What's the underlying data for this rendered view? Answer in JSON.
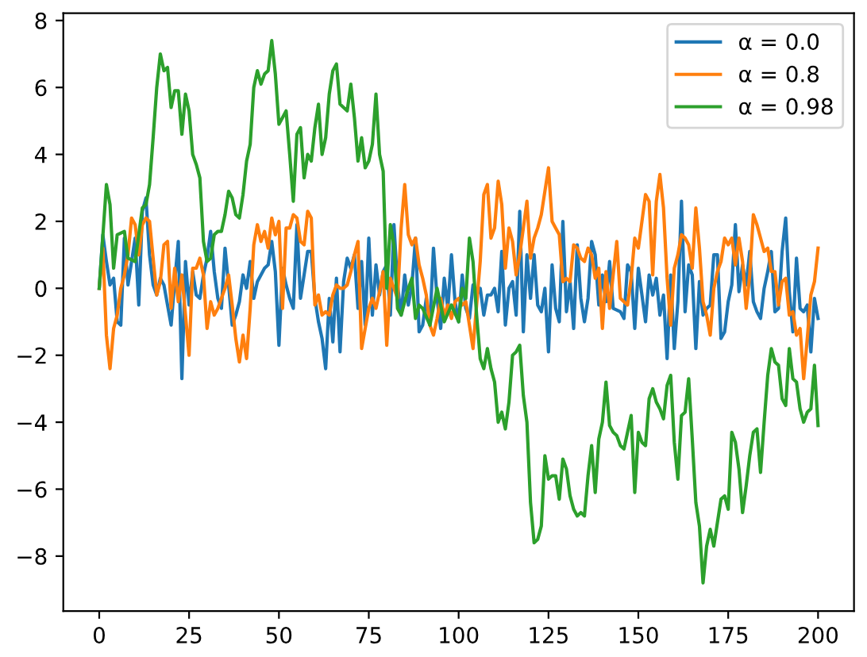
{
  "chart_data": {
    "type": "line",
    "xlim": [
      -10,
      210
    ],
    "xticks": [
      0,
      25,
      50,
      75,
      100,
      125,
      150,
      175,
      200
    ],
    "ylim": [
      -9.64,
      8.22
    ],
    "yticks": [
      {
        "value": -8,
        "label": "−8"
      },
      {
        "value": -6,
        "label": "−6"
      },
      {
        "value": -4,
        "label": "−4"
      },
      {
        "value": -2,
        "label": "−2"
      },
      0,
      2,
      4,
      6,
      8
    ],
    "legend": "top right",
    "series": [
      {
        "name": "α = 0.0",
        "color": "#1f77b4",
        "x": [
          0,
          1,
          2,
          3,
          4,
          5,
          6,
          7,
          8,
          9,
          10,
          11,
          12,
          13,
          14,
          15,
          16,
          17,
          18,
          19,
          20,
          21,
          22,
          23,
          24,
          25,
          26,
          27,
          28,
          29,
          30,
          31,
          32,
          33,
          34,
          35,
          36,
          37,
          38,
          39,
          40,
          41,
          42,
          43,
          44,
          45,
          46,
          47,
          48,
          49,
          50,
          51,
          52,
          53,
          54,
          55,
          56,
          57,
          58,
          59,
          60,
          61,
          62,
          63,
          64,
          65,
          66,
          67,
          68,
          69,
          70,
          71,
          72,
          73,
          74,
          75,
          76,
          77,
          78,
          79,
          80,
          81,
          82,
          83,
          84,
          85,
          86,
          87,
          88,
          89,
          90,
          91,
          92,
          93,
          94,
          95,
          96,
          97,
          98,
          99,
          100,
          101,
          102,
          103,
          104,
          105,
          106,
          107,
          108,
          109,
          110,
          111,
          112,
          113,
          114,
          115,
          116,
          117,
          118,
          119,
          120,
          121,
          122,
          123,
          124,
          125,
          126,
          127,
          128,
          129,
          130,
          131,
          132,
          133,
          134,
          135,
          136,
          137,
          138,
          139,
          140,
          141,
          142,
          143,
          145,
          146,
          147,
          148,
          149,
          150,
          151,
          152,
          153,
          154,
          155,
          156,
          157,
          158,
          159,
          160,
          161,
          162,
          163,
          164,
          165,
          166,
          167,
          168,
          169,
          170,
          171,
          172,
          173,
          174,
          175,
          176,
          177,
          178,
          179,
          180,
          181,
          182,
          183,
          184,
          185,
          186,
          187,
          188,
          189,
          190,
          191,
          192,
          193,
          194,
          195,
          196,
          197,
          198,
          199,
          200
        ],
        "values": [
          0,
          1.6,
          0.8,
          0.1,
          0.3,
          -1.0,
          -1.1,
          1.5,
          0.1,
          0.8,
          1.5,
          -0.5,
          2.3,
          2.7,
          1.0,
          0.1,
          -0.2,
          0.3,
          0.1,
          -0.5,
          -1.1,
          0.2,
          1.4,
          -2.7,
          0.8,
          -0.5,
          0.5,
          -0.2,
          -0.3,
          0.4,
          0.9,
          1.7,
          0.5,
          -0.3,
          -0.6,
          1.2,
          0.1,
          -1.1,
          -0.8,
          -0.4,
          0.4,
          0.0,
          0.8,
          -0.3,
          0.2,
          0.4,
          0.6,
          0.7,
          1.4,
          0.5,
          -1.7,
          0.6,
          0.1,
          -0.3,
          -0.6,
          1.9,
          -0.3,
          0.4,
          1.1,
          1.1,
          -0.3,
          -1.0,
          -1.5,
          -2.4,
          -0.3,
          -1.6,
          0.3,
          -1.9,
          0.2,
          0.9,
          0.6,
          1.0,
          -0.6,
          0.8,
          -1.1,
          1.5,
          -0.8,
          0.7,
          -0.2,
          0.5,
          0.7,
          -0.8,
          1.9,
          0.1,
          -0.8,
          0.4,
          -0.5,
          0.1,
          1.5,
          -1.3,
          -1.1,
          -0.3,
          -1.1,
          1.2,
          -0.3,
          -1.2,
          0.3,
          -0.6,
          1.0,
          -0.4,
          -1.0,
          0.4,
          -0.6,
          -0.9,
          0.1,
          -0.2,
          0.0,
          -0.8,
          -0.2,
          -0.2,
          0.0,
          -0.7,
          1.1,
          -1.1,
          0.0,
          0.2,
          -0.8,
          2.3,
          -1.3,
          1.0,
          -0.3,
          1.0,
          -0.5,
          -0.7,
          0.0,
          -1.9,
          0.7,
          -0.6,
          -1.0,
          2.0,
          -0.7,
          0.2,
          -1.2,
          1.3,
          -0.3,
          -1.0,
          -0.3,
          1.4,
          1.0,
          -0.5,
          0.4,
          -0.4,
          0.8,
          -0.6,
          -0.7,
          -0.9,
          0.7,
          0.5,
          -1.2,
          0.6,
          -0.2,
          -1.0,
          0.4,
          -0.2,
          0.3,
          -0.8,
          -0.2,
          -2.1,
          0.4,
          -1.8,
          -0.4,
          2.6,
          -0.7,
          0.7,
          0.4,
          -1.8,
          0.2,
          -0.8,
          -0.6,
          -0.5,
          1.0,
          1.0,
          -1.5,
          -1.3,
          -0.4,
          0.1,
          1.9,
          -0.1,
          0.7,
          0.1,
          1.1,
          -0.4,
          -0.7,
          -0.9,
          0.0,
          0.5,
          1.1,
          -0.7,
          -0.6,
          1.1,
          2.1,
          -0.1,
          -1.3,
          0.9,
          -0.6,
          -0.7,
          -0.5,
          -1.9,
          -0.3,
          -0.9
        ]
      },
      {
        "name": "α = 0.8",
        "color": "#ff7f0e",
        "x": [
          0,
          1,
          2,
          3,
          4,
          5,
          6,
          7,
          8,
          9,
          10,
          11,
          12,
          13,
          14,
          15,
          16,
          17,
          18,
          19,
          20,
          21,
          22,
          23,
          24,
          25,
          26,
          27,
          28,
          29,
          30,
          31,
          32,
          33,
          34,
          35,
          36,
          37,
          38,
          39,
          40,
          41,
          42,
          43,
          44,
          45,
          46,
          47,
          48,
          49,
          50,
          51,
          52,
          53,
          54,
          55,
          56,
          57,
          58,
          59,
          60,
          61,
          62,
          63,
          64,
          65,
          66,
          67,
          68,
          69,
          70,
          71,
          72,
          73,
          74,
          75,
          76,
          77,
          78,
          79,
          80,
          81,
          82,
          83,
          84,
          85,
          86,
          87,
          88,
          89,
          90,
          91,
          92,
          93,
          94,
          95,
          96,
          97,
          98,
          99,
          100,
          101,
          102,
          103,
          104,
          105,
          106,
          107,
          108,
          109,
          110,
          111,
          112,
          113,
          114,
          115,
          116,
          117,
          118,
          119,
          120,
          121,
          122,
          123,
          124,
          125,
          126,
          127,
          128,
          129,
          130,
          131,
          132,
          133,
          134,
          135,
          136,
          137,
          138,
          139,
          140,
          141,
          142,
          143,
          144,
          145,
          146,
          147,
          148,
          149,
          150,
          151,
          152,
          153,
          154,
          155,
          156,
          157,
          158,
          159,
          160,
          161,
          162,
          163,
          164,
          165,
          166,
          167,
          168,
          169,
          170,
          171,
          172,
          173,
          174,
          175,
          176,
          177,
          178,
          179,
          180,
          181,
          182,
          183,
          184,
          185,
          186,
          187,
          188,
          189,
          190,
          191,
          192,
          193,
          194,
          195,
          196,
          197,
          198,
          199,
          200
        ],
        "values": [
          0,
          1.2,
          -1.4,
          -2.4,
          -1.2,
          -0.8,
          0.0,
          0.4,
          1.0,
          2.1,
          1.9,
          1.0,
          1.9,
          2.1,
          2.0,
          0.9,
          -0.2,
          0.2,
          1.3,
          1.4,
          -0.6,
          0.6,
          -0.4,
          0.4,
          -0.8,
          -2.0,
          0.6,
          0.6,
          0.9,
          0.4,
          -1.2,
          -0.4,
          -0.8,
          -0.6,
          -0.3,
          0.0,
          0.4,
          -0.5,
          -1.5,
          -2.2,
          -1.4,
          -2.1,
          -0.6,
          1.3,
          1.9,
          1.4,
          1.7,
          1.2,
          2.1,
          1.6,
          2.0,
          -0.6,
          1.8,
          1.8,
          2.2,
          2.1,
          1.4,
          1.3,
          2.3,
          2.1,
          -0.5,
          -0.2,
          -0.8,
          -0.7,
          -0.8,
          -0.2,
          0.1,
          0.0,
          0.0,
          0.1,
          0.5,
          1.0,
          1.4,
          -1.8,
          -1.2,
          -0.6,
          -0.3,
          -0.6,
          -0.1,
          0.5,
          -1.7,
          0.3,
          0.0,
          -0.3,
          1.8,
          3.1,
          1.6,
          1.3,
          1.5,
          0.7,
          0.3,
          -0.2,
          -1.1,
          -1.4,
          -0.9,
          -0.3,
          -0.8,
          -0.5,
          -0.9,
          -0.4,
          -0.3,
          -0.5,
          -0.4,
          -1.1,
          -1.8,
          -0.5,
          0.8,
          2.8,
          3.1,
          1.5,
          1.8,
          3.2,
          2.5,
          0.6,
          1.8,
          1.4,
          0.4,
          1.0,
          1.8,
          2.6,
          0.9,
          1.5,
          1.8,
          2.2,
          2.9,
          3.6,
          2.0,
          1.8,
          1.6,
          0.2,
          0.3,
          0.2,
          1.3,
          1.2,
          0.9,
          0.8,
          1.2,
          1.0,
          0.3,
          0.6,
          -1.2,
          0.5,
          -0.6,
          0.4,
          1.4,
          -0.3,
          -0.4,
          -0.5,
          0.3,
          1.5,
          1.2,
          2.0,
          2.8,
          2.6,
          0.4,
          2.6,
          3.4,
          2.4,
          0.3,
          -1.1,
          0.6,
          1.0,
          1.6,
          1.5,
          1.3,
          0.6,
          2.4,
          1.2,
          -0.4,
          -0.8,
          -1.4,
          0.0,
          0.5,
          0.8,
          1.5,
          1.3,
          1.5,
          0.7,
          1.5,
          0.8,
          -0.6,
          0.4,
          2.2,
          1.9,
          1.5,
          1.1,
          1.2,
          0.5,
          0.5,
          -0.5,
          0.2,
          0.3,
          -0.8,
          -0.7,
          -1.4,
          -1.2,
          -2.7,
          -1.5,
          -0.2,
          0.2,
          1.2
        ]
      },
      {
        "name": "α = 0.98",
        "color": "#2ca02c",
        "x": [
          0,
          2,
          3,
          4,
          5,
          7,
          8,
          10,
          11,
          12,
          13,
          14,
          15,
          16,
          17,
          18,
          19,
          20,
          21,
          22,
          23,
          24,
          25,
          26,
          27,
          28,
          29,
          30,
          31,
          32,
          33,
          34,
          35,
          36,
          37,
          38,
          39,
          40,
          41,
          42,
          43,
          44,
          45,
          46,
          47,
          48,
          49,
          50,
          51,
          52,
          53,
          54,
          55,
          56,
          57,
          58,
          59,
          60,
          61,
          62,
          63,
          64,
          65,
          66,
          67,
          68,
          69,
          70,
          71,
          72,
          73,
          74,
          75,
          76,
          77,
          78,
          79,
          80,
          81,
          82,
          83,
          84,
          85,
          86,
          87,
          88,
          89,
          90,
          92,
          94,
          96,
          98,
          100,
          101,
          102,
          103,
          104,
          105,
          106,
          107,
          108,
          109,
          110,
          111,
          112,
          113,
          114,
          115,
          116,
          117,
          118,
          119,
          120,
          121,
          122,
          123,
          124,
          125,
          126,
          127,
          128,
          129,
          130,
          131,
          132,
          133,
          134,
          135,
          136,
          137,
          138,
          139,
          140,
          141,
          142,
          143,
          144,
          145,
          146,
          147,
          148,
          149,
          150,
          151,
          152,
          153,
          154,
          155,
          156,
          157,
          158,
          159,
          160,
          161,
          162,
          163,
          164,
          165,
          166,
          167,
          168,
          169,
          170,
          171,
          172,
          173,
          174,
          175,
          176,
          177,
          178,
          179,
          180,
          181,
          182,
          183,
          184,
          185,
          186,
          187,
          188,
          189,
          190,
          191,
          192,
          193,
          194,
          195,
          196,
          197,
          198,
          199,
          200
        ],
        "values": [
          0,
          3.1,
          2.5,
          0.6,
          1.6,
          1.7,
          0.9,
          0.8,
          1.6,
          2.4,
          2.5,
          3.1,
          4.5,
          6.0,
          7.0,
          6.5,
          6.6,
          5.4,
          5.9,
          5.9,
          4.6,
          5.8,
          5.3,
          4.0,
          3.7,
          3.3,
          1.4,
          0.8,
          0.9,
          1.6,
          1.7,
          1.7,
          2.2,
          2.9,
          2.7,
          2.2,
          2.1,
          2.8,
          3.8,
          4.3,
          6.0,
          6.5,
          6.1,
          6.4,
          6.5,
          7.4,
          6.4,
          4.9,
          5.1,
          5.3,
          4.0,
          2.6,
          4.6,
          4.8,
          3.3,
          4.0,
          3.8,
          4.8,
          5.5,
          4.0,
          4.5,
          5.8,
          6.5,
          6.7,
          5.5,
          5.4,
          5.3,
          6.1,
          5.1,
          3.8,
          4.5,
          3.6,
          3.8,
          4.3,
          5.8,
          4.0,
          3.5,
          0.0,
          1.9,
          1.3,
          -0.6,
          -0.8,
          -0.4,
          0.0,
          0.3,
          -0.9,
          -0.5,
          -0.6,
          -1.1,
          0.0,
          -1.0,
          -0.5,
          -1.0,
          0.0,
          -0.3,
          1.5,
          0.8,
          -0.8,
          -2.1,
          -2.4,
          -1.8,
          -2.4,
          -2.8,
          -4.0,
          -3.7,
          -4.2,
          -3.4,
          -2.0,
          -1.9,
          -1.7,
          -3.2,
          -4.0,
          -6.4,
          -7.6,
          -7.5,
          -7.1,
          -5.0,
          -5.7,
          -5.6,
          -5.6,
          -6.3,
          -5.1,
          -5.4,
          -6.2,
          -6.6,
          -6.8,
          -6.7,
          -6.8,
          -5.6,
          -4.7,
          -6.1,
          -4.5,
          -4.0,
          -2.8,
          -4.1,
          -4.3,
          -4.4,
          -4.7,
          -4.8,
          -4.3,
          -3.8,
          -6.1,
          -4.3,
          -4.6,
          -4.7,
          -3.3,
          -3.0,
          -3.4,
          -3.6,
          -3.9,
          -2.9,
          -2.6,
          -4.6,
          -5.7,
          -3.8,
          -3.7,
          -2.7,
          -4.5,
          -6.4,
          -7.1,
          -8.8,
          -7.7,
          -7.2,
          -7.7,
          -7.0,
          -6.3,
          -6.2,
          -6.6,
          -4.3,
          -4.6,
          -5.4,
          -6.7,
          -5.9,
          -5.0,
          -4.3,
          -4.2,
          -5.5,
          -4.0,
          -2.6,
          -1.8,
          -2.2,
          -2.3,
          -3.3,
          -3.5,
          -1.8,
          -2.7,
          -2.8,
          -3.6,
          -4.0,
          -3.7,
          -3.6,
          -2.3,
          -4.1
        ]
      }
    ]
  }
}
